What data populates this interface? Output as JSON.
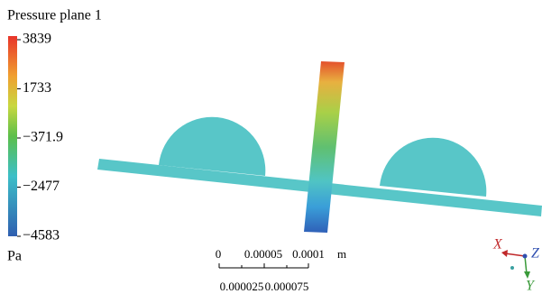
{
  "legend": {
    "title": "Pressure plane 1",
    "ticks": [
      "3839",
      "1733",
      "−371.9",
      "−2477",
      "−4583"
    ],
    "unit": "Pa"
  },
  "scale_bar": {
    "top_labels": [
      "0",
      "0.00005",
      "0.0001"
    ],
    "unit": "m",
    "bottom_labels": [
      "0.000025",
      "0.000075"
    ]
  },
  "triad": {
    "x": "X",
    "y": "Y",
    "z": "Z"
  }
}
